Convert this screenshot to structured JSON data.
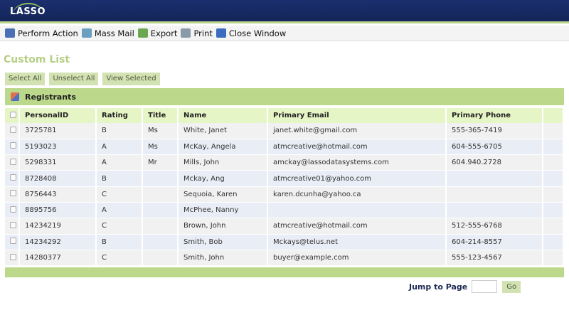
{
  "app": {
    "logo": "LASSO"
  },
  "toolbar": [
    {
      "label": "Perform Action",
      "icon": "perform-action-icon",
      "color": "#4a6fb5"
    },
    {
      "label": "Mass Mail",
      "icon": "mass-mail-icon",
      "color": "#6a9fc0"
    },
    {
      "label": "Export",
      "icon": "export-icon",
      "color": "#6aa84f"
    },
    {
      "label": "Print",
      "icon": "print-icon",
      "color": "#8a9aa8"
    },
    {
      "label": "Close Window",
      "icon": "close-window-icon",
      "color": "#3b6cc0"
    }
  ],
  "page_title": "Custom List",
  "buttons": {
    "select_all": "Select All",
    "unselect_all": "Unselect All",
    "view_selected": "View Selected"
  },
  "grid": {
    "title": "Registrants",
    "columns": [
      "PersonalID",
      "Rating",
      "Title",
      "Name",
      "Primary Email",
      "Primary Phone"
    ],
    "rows": [
      [
        "3725781",
        "B",
        "Ms",
        "White, Janet",
        "janet.white@gmail.com",
        "555-365-7419"
      ],
      [
        "5193023",
        "A",
        "Ms",
        "McKay, Angela",
        "atmcreative@hotmail.com",
        "604-555-6705"
      ],
      [
        "5298331",
        "A",
        "Mr",
        "Mills, John",
        "amckay@lassodatasystems.com",
        "604.940.2728"
      ],
      [
        "8728408",
        "B",
        "",
        "Mckay, Ang",
        "atmcreative01@yahoo.com",
        ""
      ],
      [
        "8756443",
        "C",
        "",
        "Sequoia, Karen",
        "karen.dcunha@yahoo.ca",
        ""
      ],
      [
        "8895756",
        "A",
        "",
        "McPhee, Nanny",
        "",
        ""
      ],
      [
        "14234219",
        "C",
        "",
        "Brown, John",
        "atmcreative@hotmail.com",
        "512-555-6768"
      ],
      [
        "14234292",
        "B",
        "",
        "Smith, Bob",
        "Mckays@telus.net",
        "604-214-8557"
      ],
      [
        "14280377",
        "C",
        "",
        "Smith, John",
        "buyer@example.com",
        "555-123-4567"
      ]
    ]
  },
  "pager": {
    "label": "Jump to Page",
    "value": "",
    "go": "Go"
  }
}
